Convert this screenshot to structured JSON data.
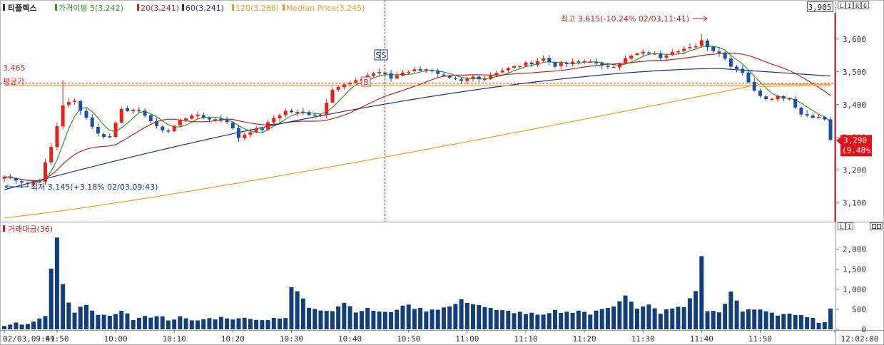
{
  "header": {
    "name": "티플렉스",
    "ma5": "가격이평 5(3,242)",
    "ma20": "20(3,241)",
    "ma60": "60(3,241)",
    "ma120": "120(3,286)",
    "median": "Median Price(3,245)",
    "corner_value": "3,905",
    "corner_buttons": [
      "L",
      "I",
      "R",
      "G"
    ]
  },
  "volume_header": {
    "title": "거래대금(36)",
    "corner_buttons": [
      "L",
      "I"
    ]
  },
  "colors": {
    "up": "#e8201a",
    "down": "#1e4ea8",
    "ma5": "#2a9d1f",
    "ma20": "#c81e1e",
    "ma60": "#1a2f9c",
    "ma120": "#f59a1c",
    "volume": "#123f7a",
    "avg_line": "#d3302f",
    "crosshair": "#c83a3a",
    "current": "#e0121a"
  },
  "annotations": {
    "high": "최고 3,615(-10.24% 02/03,11:41)",
    "low": "최저 3,145(+3.18% 02/03,09:43)",
    "avg_value": "3,465",
    "avg_label": "평균가",
    "current_price": "3,290",
    "current_pct": "(9.48%)",
    "signal_s": "S",
    "signal_b": "B"
  },
  "chart_data": {
    "type": "candlestick",
    "y_ticks": [
      "3,600",
      "3,500",
      "3,400",
      "3,300",
      "3,200",
      "3,100"
    ],
    "y_tick_values": [
      3600,
      3500,
      3400,
      3300,
      3200,
      3100
    ],
    "y_range": [
      3045,
      3680
    ],
    "vol_ticks": [
      "2,000",
      "1,500",
      "1,000",
      "500",
      "0"
    ],
    "vol_tick_values": [
      2000,
      1500,
      1000,
      500,
      0
    ],
    "vol_range": [
      0,
      2350
    ],
    "x_ticks": [
      "02/03,09:41",
      "09:50",
      "10:00",
      "10:10",
      "10:20",
      "10:30",
      "10:40",
      "10:50",
      "11:00",
      "11:10",
      "11:20",
      "11:30",
      "11:40",
      "11:50",
      "12:02:00"
    ],
    "x_tick_minutes": [
      0,
      9,
      19,
      29,
      39,
      49,
      59,
      69,
      79,
      89,
      99,
      109,
      119,
      129,
      141
    ],
    "avg_price": 3465,
    "anchors": [
      [
        0,
        3180
      ],
      [
        2,
        3172
      ],
      [
        4,
        3158
      ],
      [
        6,
        3170
      ],
      [
        8,
        3270
      ],
      [
        10,
        3400
      ],
      [
        12,
        3410
      ],
      [
        14,
        3360
      ],
      [
        16,
        3310
      ],
      [
        18,
        3300
      ],
      [
        20,
        3390
      ],
      [
        22,
        3380
      ],
      [
        24,
        3370
      ],
      [
        26,
        3330
      ],
      [
        28,
        3320
      ],
      [
        30,
        3350
      ],
      [
        32,
        3370
      ],
      [
        34,
        3360
      ],
      [
        36,
        3355
      ],
      [
        38,
        3350
      ],
      [
        40,
        3300
      ],
      [
        42,
        3320
      ],
      [
        44,
        3325
      ],
      [
        46,
        3360
      ],
      [
        48,
        3380
      ],
      [
        50,
        3375
      ],
      [
        52,
        3372
      ],
      [
        54,
        3370
      ],
      [
        56,
        3450
      ],
      [
        58,
        3460
      ],
      [
        60,
        3470
      ],
      [
        62,
        3490
      ],
      [
        64,
        3500
      ],
      [
        66,
        3480
      ],
      [
        68,
        3500
      ],
      [
        70,
        3505
      ],
      [
        72,
        3510
      ],
      [
        74,
        3490
      ],
      [
        76,
        3478
      ],
      [
        78,
        3470
      ],
      [
        80,
        3485
      ],
      [
        82,
        3480
      ],
      [
        84,
        3500
      ],
      [
        86,
        3510
      ],
      [
        88,
        3520
      ],
      [
        90,
        3528
      ],
      [
        92,
        3540
      ],
      [
        94,
        3520
      ],
      [
        96,
        3525
      ],
      [
        98,
        3530
      ],
      [
        100,
        3535
      ],
      [
        102,
        3515
      ],
      [
        104,
        3520
      ],
      [
        106,
        3540
      ],
      [
        108,
        3555
      ],
      [
        110,
        3560
      ],
      [
        112,
        3545
      ],
      [
        114,
        3565
      ],
      [
        116,
        3570
      ],
      [
        118,
        3575
      ],
      [
        119,
        3600
      ],
      [
        120,
        3575
      ],
      [
        122,
        3560
      ],
      [
        124,
        3520
      ],
      [
        126,
        3500
      ],
      [
        128,
        3440
      ],
      [
        130,
        3420
      ],
      [
        132,
        3425
      ],
      [
        134,
        3420
      ],
      [
        136,
        3370
      ],
      [
        138,
        3365
      ],
      [
        140,
        3355
      ],
      [
        141,
        3290
      ]
    ],
    "high_point": [
      119,
      3615
    ],
    "low_point": [
      3,
      3145
    ],
    "volume_anchors": [
      [
        0,
        60
      ],
      [
        2,
        140
      ],
      [
        4,
        120
      ],
      [
        6,
        250
      ],
      [
        7,
        300
      ],
      [
        8,
        1500
      ],
      [
        9,
        2300
      ],
      [
        10,
        1100
      ],
      [
        11,
        650
      ],
      [
        12,
        400
      ],
      [
        14,
        650
      ],
      [
        16,
        350
      ],
      [
        18,
        300
      ],
      [
        20,
        500
      ],
      [
        22,
        250
      ],
      [
        24,
        300
      ],
      [
        26,
        350
      ],
      [
        28,
        250
      ],
      [
        30,
        300
      ],
      [
        32,
        200
      ],
      [
        34,
        250
      ],
      [
        36,
        280
      ],
      [
        38,
        300
      ],
      [
        40,
        250
      ],
      [
        42,
        300
      ],
      [
        44,
        220
      ],
      [
        46,
        300
      ],
      [
        48,
        250
      ],
      [
        49,
        1050
      ],
      [
        50,
        950
      ],
      [
        52,
        550
      ],
      [
        54,
        500
      ],
      [
        56,
        480
      ],
      [
        58,
        680
      ],
      [
        60,
        460
      ],
      [
        62,
        500
      ],
      [
        64,
        450
      ],
      [
        66,
        400
      ],
      [
        68,
        620
      ],
      [
        70,
        540
      ],
      [
        72,
        480
      ],
      [
        74,
        520
      ],
      [
        76,
        560
      ],
      [
        78,
        720
      ],
      [
        80,
        650
      ],
      [
        82,
        560
      ],
      [
        84,
        460
      ],
      [
        86,
        450
      ],
      [
        88,
        420
      ],
      [
        90,
        380
      ],
      [
        92,
        330
      ],
      [
        94,
        450
      ],
      [
        96,
        420
      ],
      [
        98,
        480
      ],
      [
        100,
        380
      ],
      [
        102,
        500
      ],
      [
        104,
        600
      ],
      [
        106,
        860
      ],
      [
        108,
        500
      ],
      [
        110,
        600
      ],
      [
        112,
        420
      ],
      [
        114,
        520
      ],
      [
        116,
        560
      ],
      [
        118,
        980
      ],
      [
        119,
        1800
      ],
      [
        120,
        470
      ],
      [
        122,
        420
      ],
      [
        124,
        920
      ],
      [
        126,
        450
      ],
      [
        128,
        500
      ],
      [
        130,
        470
      ],
      [
        132,
        370
      ],
      [
        134,
        400
      ],
      [
        136,
        320
      ],
      [
        138,
        250
      ],
      [
        140,
        150
      ],
      [
        141,
        480
      ]
    ]
  }
}
